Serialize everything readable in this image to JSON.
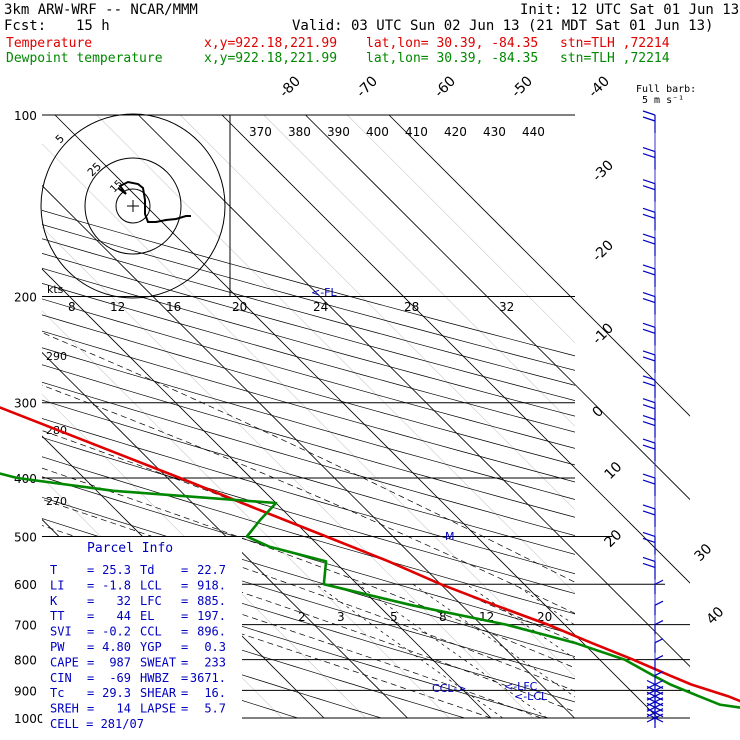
{
  "header": {
    "model": "3km ARW-WRF -- NCAR/MMM",
    "init": "Init: 12 UTC Sat 01 Jun 13",
    "fcst_label": "Fcst:",
    "fcst_value": "15 h",
    "valid": "Valid: 03 UTC Sun 02 Jun 13 (21 MDT Sat 01 Jun 13)",
    "temp_label": "Temperature",
    "dew_label": "Dewpoint temperature",
    "xy": "x,y=922.18,221.99",
    "latlon": "lat,lon= 30.39, -84.35",
    "station": "stn=TLH ,72214"
  },
  "barb_legend": {
    "line1": "Full barb:",
    "line2": "5 m s⁻¹"
  },
  "colors": {
    "temperature": "#e00000",
    "dewpoint": "#008800",
    "parcel": "#0000c0",
    "grid": "#000000"
  },
  "hodograph": {
    "units_label": "kts",
    "ring_labels": [
      "5",
      "15",
      "25"
    ]
  },
  "parcel_info": {
    "title": "Parcel Info",
    "rows": [
      {
        "k1": "T",
        "v1": "25.3",
        "k2": "Td",
        "v2": "22.7"
      },
      {
        "k1": "LI",
        "v1": "-1.8",
        "k2": "LCL",
        "v2": "918."
      },
      {
        "k1": "K",
        "v1": "32",
        "k2": "LFC",
        "v2": "885."
      },
      {
        "k1": "TT",
        "v1": "44",
        "k2": "EL",
        "v2": "197."
      },
      {
        "k1": "SVI",
        "v1": "-0.2",
        "k2": "CCL",
        "v2": "896."
      },
      {
        "k1": "PW",
        "v1": "4.80",
        "k2": "YGP",
        "v2": "0.3"
      },
      {
        "k1": "CAPE",
        "v1": "987",
        "k2": "SWEAT",
        "v2": "233"
      },
      {
        "k1": "CIN",
        "v1": "-69",
        "k2": "HWBZ",
        "v2": "3671."
      },
      {
        "k1": "Tc",
        "v1": "29.3",
        "k2": "SHEAR",
        "v2": "16."
      },
      {
        "k1": "SREH",
        "v1": "14",
        "k2": "LAPSE",
        "v2": "5.7"
      }
    ],
    "cell": "CELL = 281/07"
  },
  "chart_data": {
    "type": "line",
    "title": "",
    "ylabel": "",
    "pressure_levels": [
      100,
      200,
      300,
      400,
      500,
      600,
      700,
      800,
      900,
      1000
    ],
    "temp_ticks": [
      -80,
      -70,
      -60,
      -50,
      -40,
      -30,
      -20,
      -10,
      0,
      10,
      20,
      30,
      40
    ],
    "theta_labels": [
      "370",
      "380",
      "390",
      "400",
      "410",
      "420",
      "430",
      "440"
    ],
    "kt_ticks": [
      "8",
      "12",
      "16",
      "20",
      "24",
      "28",
      "32"
    ],
    "dry_adiabat_labels": [
      "290",
      "280",
      "270"
    ],
    "mixing_ratio_labels": [
      "2",
      "3",
      "5",
      "8",
      "12",
      "20"
    ],
    "level_markers": [
      "<-FL",
      "M",
      "CCL->",
      "<-LFC",
      "<-LCL"
    ],
    "series": [
      {
        "name": "Temperature",
        "color": "#e00000",
        "p": [
          1000,
          970,
          950,
          920,
          880,
          850,
          800,
          750,
          700,
          650,
          600,
          550,
          500,
          450,
          400,
          350,
          300,
          250,
          200,
          170,
          150,
          130,
          110,
          100
        ],
        "t": [
          24.5,
          25.3,
          22.5,
          21.0,
          18.0,
          16.5,
          14.0,
          11.0,
          8.0,
          4.0,
          0.0,
          -3.5,
          -8.0,
          -13.0,
          -18.5,
          -25.0,
          -32.5,
          -43.0,
          -55.0,
          -63.0,
          -67.0,
          -70.0,
          -68.0,
          -65.0
        ]
      },
      {
        "name": "Dewpoint temperature",
        "color": "#008800",
        "p": [
          1000,
          990,
          970,
          950,
          920,
          880,
          850,
          800,
          750,
          700,
          650,
          600,
          550,
          520,
          500,
          470,
          440,
          420,
          400,
          370,
          340,
          320,
          300,
          270,
          250,
          230,
          200,
          170,
          150,
          130,
          110,
          100
        ],
        "t": [
          20.5,
          21.5,
          22.7,
          19.0,
          17.5,
          15.5,
          14.5,
          13.0,
          9.0,
          3.0,
          -6.0,
          -14.0,
          -11.0,
          -16.0,
          -17.5,
          -14.0,
          -10.0,
          -28.0,
          -38.0,
          -45.0,
          -52.0,
          -56.0,
          -58.0,
          -64.0,
          -67.0,
          -69.0,
          -72.0,
          -77.0,
          -82.0,
          -82.0,
          -78.0,
          -75.0
        ]
      }
    ],
    "wind_barb_levels": [
      1000,
      980,
      960,
      940,
      920,
      900,
      880,
      850,
      800,
      750,
      700,
      650,
      600,
      550,
      500,
      450,
      400,
      350,
      320,
      300,
      275,
      250,
      225,
      200,
      180,
      160,
      145,
      130,
      115,
      100
    ]
  }
}
